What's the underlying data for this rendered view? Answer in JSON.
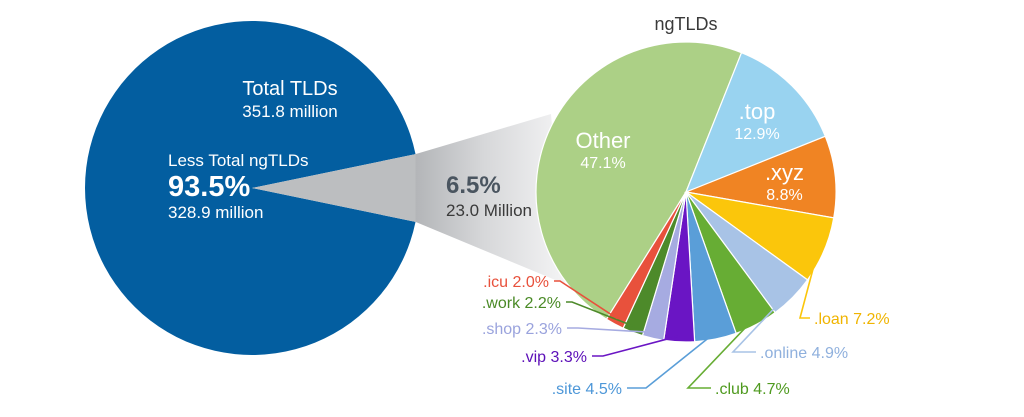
{
  "chart_data": [
    {
      "type": "pie",
      "title": "",
      "total_label": "Total TLDs",
      "total_value": "351.8 million",
      "slices": [
        {
          "name": "Less Total ngTLDs",
          "percent": 93.5,
          "percent_label": "93.5%",
          "value_label": "328.9 million",
          "color": "#035ea0"
        },
        {
          "name": "ngTLDs",
          "percent": 6.5,
          "percent_label": "6.5%",
          "value_label": "23.0 Million",
          "color": "#bcbec0"
        }
      ]
    },
    {
      "type": "pie",
      "title": "ngTLDs",
      "slices": [
        {
          "name": "Other",
          "value": 47.1,
          "label": "47.1%",
          "color": "#acd086",
          "text_color": "#ffffff"
        },
        {
          "name": ".top",
          "value": 12.9,
          "label": "12.9%",
          "color": "#99d3f0",
          "text_color": "#ffffff"
        },
        {
          "name": ".xyz",
          "value": 8.8,
          "label": "8.8%",
          "color": "#f08423",
          "text_color": "#ffffff"
        },
        {
          "name": ".loan",
          "value": 7.2,
          "label": "7.2%",
          "color": "#fbc60b",
          "text_color": "#f0b400"
        },
        {
          "name": ".online",
          "value": 4.9,
          "label": "4.9%",
          "color": "#a8c3e6",
          "text_color": "#8fb0dd"
        },
        {
          "name": ".club",
          "value": 4.7,
          "label": "4.7%",
          "color": "#67ad34",
          "text_color": "#4f9a1f"
        },
        {
          "name": ".site",
          "value": 4.5,
          "label": "4.5%",
          "color": "#5a9ed8",
          "text_color": "#4d97d8"
        },
        {
          "name": ".vip",
          "value": 3.3,
          "label": "3.3%",
          "color": "#6a15c4",
          "text_color": "#5c0fb8"
        },
        {
          "name": ".shop",
          "value": 2.3,
          "label": "2.3%",
          "color": "#a6abe1",
          "text_color": "#9aa3dd"
        },
        {
          "name": ".work",
          "value": 2.2,
          "label": "2.2%",
          "color": "#4d8a2a",
          "text_color": "#4a8a26"
        },
        {
          "name": ".icu",
          "value": 2.0,
          "label": "2.0%",
          "color": "#e8513c",
          "text_color": "#e8513c"
        }
      ]
    }
  ]
}
